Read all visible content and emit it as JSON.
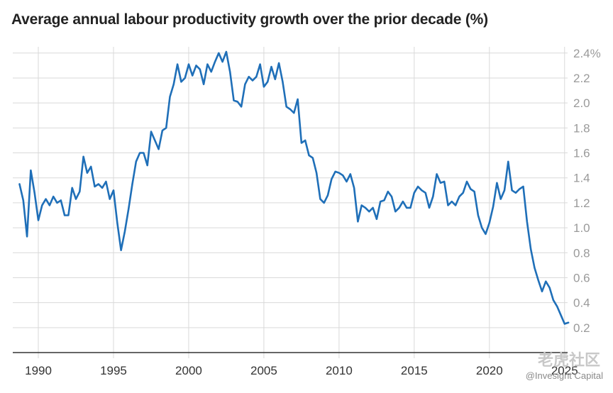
{
  "chart_data": {
    "type": "line",
    "title": "Average annual labour productivity growth over the prior decade (%)",
    "xlabel": "",
    "ylabel": "",
    "unit_suffix": "%",
    "xlim": [
      1988.3,
      2025.2
    ],
    "ylim": [
      0,
      2.45
    ],
    "x_ticks": [
      1990,
      1995,
      2000,
      2005,
      2010,
      2015,
      2020,
      2025
    ],
    "y_ticks": [
      0.2,
      0.4,
      0.6,
      0.8,
      1.0,
      1.2,
      1.4,
      1.6,
      1.8,
      2.0,
      2.2,
      2.4
    ],
    "y_tick_labels": [
      "0.2",
      "0.4",
      "0.6",
      "0.8",
      "1.0",
      "1.2",
      "1.4",
      "1.6",
      "1.8",
      "2.0",
      "2.2",
      "2.4%"
    ],
    "grid": true,
    "line_color": "#1f6fb8",
    "series": [
      {
        "name": "",
        "points": [
          [
            1988.75,
            1.35
          ],
          [
            1989.0,
            1.22
          ],
          [
            1989.25,
            0.93
          ],
          [
            1989.5,
            1.46
          ],
          [
            1989.75,
            1.28
          ],
          [
            1990.0,
            1.06
          ],
          [
            1990.25,
            1.18
          ],
          [
            1990.5,
            1.23
          ],
          [
            1990.75,
            1.18
          ],
          [
            1991.0,
            1.25
          ],
          [
            1991.25,
            1.2
          ],
          [
            1991.5,
            1.22
          ],
          [
            1991.75,
            1.1
          ],
          [
            1992.0,
            1.1
          ],
          [
            1992.25,
            1.32
          ],
          [
            1992.5,
            1.23
          ],
          [
            1992.75,
            1.29
          ],
          [
            1993.0,
            1.57
          ],
          [
            1993.25,
            1.44
          ],
          [
            1993.5,
            1.49
          ],
          [
            1993.75,
            1.33
          ],
          [
            1994.0,
            1.35
          ],
          [
            1994.25,
            1.32
          ],
          [
            1994.5,
            1.37
          ],
          [
            1994.75,
            1.23
          ],
          [
            1995.0,
            1.3
          ],
          [
            1995.25,
            1.04
          ],
          [
            1995.5,
            0.82
          ],
          [
            1995.75,
            0.97
          ],
          [
            1996.0,
            1.15
          ],
          [
            1996.25,
            1.35
          ],
          [
            1996.5,
            1.53
          ],
          [
            1996.75,
            1.6
          ],
          [
            1997.0,
            1.6
          ],
          [
            1997.25,
            1.5
          ],
          [
            1997.5,
            1.77
          ],
          [
            1997.75,
            1.7
          ],
          [
            1998.0,
            1.63
          ],
          [
            1998.25,
            1.78
          ],
          [
            1998.5,
            1.8
          ],
          [
            1998.75,
            2.05
          ],
          [
            1999.0,
            2.15
          ],
          [
            1999.25,
            2.31
          ],
          [
            1999.5,
            2.17
          ],
          [
            1999.75,
            2.2
          ],
          [
            2000.0,
            2.31
          ],
          [
            2000.25,
            2.22
          ],
          [
            2000.5,
            2.3
          ],
          [
            2000.75,
            2.27
          ],
          [
            2001.0,
            2.15
          ],
          [
            2001.25,
            2.31
          ],
          [
            2001.5,
            2.25
          ],
          [
            2001.75,
            2.33
          ],
          [
            2002.0,
            2.4
          ],
          [
            2002.25,
            2.33
          ],
          [
            2002.5,
            2.41
          ],
          [
            2002.75,
            2.25
          ],
          [
            2003.0,
            2.02
          ],
          [
            2003.25,
            2.01
          ],
          [
            2003.5,
            1.97
          ],
          [
            2003.75,
            2.15
          ],
          [
            2004.0,
            2.21
          ],
          [
            2004.25,
            2.18
          ],
          [
            2004.5,
            2.21
          ],
          [
            2004.75,
            2.31
          ],
          [
            2005.0,
            2.13
          ],
          [
            2005.25,
            2.17
          ],
          [
            2005.5,
            2.29
          ],
          [
            2005.75,
            2.19
          ],
          [
            2006.0,
            2.32
          ],
          [
            2006.25,
            2.17
          ],
          [
            2006.5,
            1.97
          ],
          [
            2006.75,
            1.95
          ],
          [
            2007.0,
            1.92
          ],
          [
            2007.25,
            2.03
          ],
          [
            2007.5,
            1.68
          ],
          [
            2007.75,
            1.7
          ],
          [
            2008.0,
            1.58
          ],
          [
            2008.25,
            1.56
          ],
          [
            2008.5,
            1.44
          ],
          [
            2008.75,
            1.23
          ],
          [
            2009.0,
            1.2
          ],
          [
            2009.25,
            1.26
          ],
          [
            2009.5,
            1.39
          ],
          [
            2009.75,
            1.45
          ],
          [
            2010.0,
            1.44
          ],
          [
            2010.25,
            1.42
          ],
          [
            2010.5,
            1.37
          ],
          [
            2010.75,
            1.43
          ],
          [
            2011.0,
            1.32
          ],
          [
            2011.25,
            1.05
          ],
          [
            2011.5,
            1.18
          ],
          [
            2011.75,
            1.16
          ],
          [
            2012.0,
            1.13
          ],
          [
            2012.25,
            1.16
          ],
          [
            2012.5,
            1.07
          ],
          [
            2012.75,
            1.21
          ],
          [
            2013.0,
            1.22
          ],
          [
            2013.25,
            1.29
          ],
          [
            2013.5,
            1.25
          ],
          [
            2013.75,
            1.13
          ],
          [
            2014.0,
            1.16
          ],
          [
            2014.25,
            1.21
          ],
          [
            2014.5,
            1.16
          ],
          [
            2014.75,
            1.16
          ],
          [
            2015.0,
            1.28
          ],
          [
            2015.25,
            1.33
          ],
          [
            2015.5,
            1.3
          ],
          [
            2015.75,
            1.28
          ],
          [
            2016.0,
            1.16
          ],
          [
            2016.25,
            1.25
          ],
          [
            2016.5,
            1.43
          ],
          [
            2016.75,
            1.36
          ],
          [
            2017.0,
            1.37
          ],
          [
            2017.25,
            1.18
          ],
          [
            2017.5,
            1.21
          ],
          [
            2017.75,
            1.18
          ],
          [
            2018.0,
            1.25
          ],
          [
            2018.25,
            1.28
          ],
          [
            2018.5,
            1.37
          ],
          [
            2018.75,
            1.31
          ],
          [
            2019.0,
            1.29
          ],
          [
            2019.25,
            1.1
          ],
          [
            2019.5,
            1.0
          ],
          [
            2019.75,
            0.95
          ],
          [
            2020.0,
            1.04
          ],
          [
            2020.25,
            1.17
          ],
          [
            2020.5,
            1.36
          ],
          [
            2020.75,
            1.23
          ],
          [
            2021.0,
            1.3
          ],
          [
            2021.25,
            1.53
          ],
          [
            2021.5,
            1.3
          ],
          [
            2021.75,
            1.28
          ],
          [
            2022.0,
            1.31
          ],
          [
            2022.25,
            1.33
          ],
          [
            2022.5,
            1.05
          ],
          [
            2022.75,
            0.83
          ],
          [
            2023.0,
            0.68
          ],
          [
            2023.25,
            0.58
          ],
          [
            2023.5,
            0.49
          ],
          [
            2023.75,
            0.57
          ],
          [
            2024.0,
            0.52
          ],
          [
            2024.25,
            0.42
          ],
          [
            2024.5,
            0.37
          ],
          [
            2024.75,
            0.3
          ],
          [
            2025.0,
            0.23
          ],
          [
            2025.25,
            0.24
          ]
        ]
      }
    ]
  },
  "watermark": {
    "text": "@Invesight Capital",
    "cn_text": "老虎社区"
  }
}
